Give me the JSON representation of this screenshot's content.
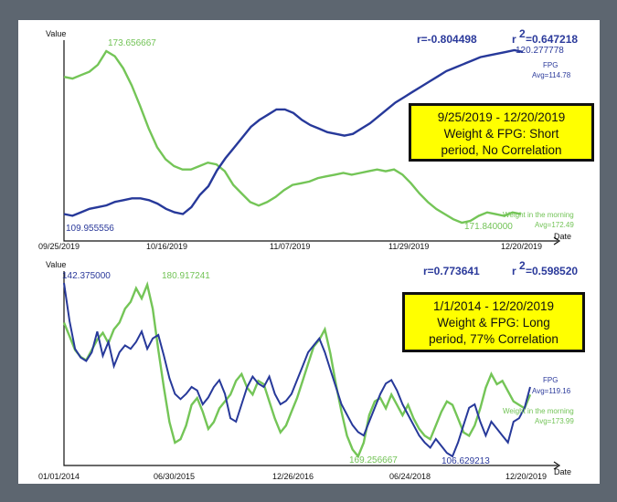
{
  "colors": {
    "fpg": "#27399a",
    "weight": "#74c557"
  },
  "chart_data": [
    {
      "type": "line",
      "xlabel": "Date",
      "ylabel": "Value",
      "x_ticks": [
        "09/25/2019",
        "10/16/2019",
        "11/07/2019",
        "11/29/2019",
        "12/20/2019"
      ],
      "stats": {
        "r": "r=-0.804498",
        "r2": "=0.647218",
        "r2_label": "r"
      },
      "note": {
        "line1": "9/25/2019 - 12/20/2019",
        "line2": "Weight & FPG:  Short",
        "line3": "period, No Correlation"
      },
      "series": [
        {
          "name": "FPG",
          "avg_label": "Avg=114.78",
          "max_label": "120.277778",
          "min_label": "109.955556",
          "values": [
            0.06,
            0.05,
            0.07,
            0.09,
            0.1,
            0.11,
            0.13,
            0.14,
            0.15,
            0.15,
            0.14,
            0.12,
            0.09,
            0.07,
            0.06,
            0.1,
            0.17,
            0.22,
            0.31,
            0.38,
            0.44,
            0.5,
            0.56,
            0.6,
            0.63,
            0.66,
            0.66,
            0.64,
            0.6,
            0.57,
            0.55,
            0.53,
            0.52,
            0.51,
            0.52,
            0.55,
            0.58,
            0.62,
            0.66,
            0.7,
            0.73,
            0.76,
            0.79,
            0.82,
            0.85,
            0.88,
            0.9,
            0.92,
            0.94,
            0.96,
            0.97,
            0.98,
            0.99,
            1.0,
            0.99
          ]
        },
        {
          "name": "Weight in the morning",
          "avg_label": "Avg=172.49",
          "max_label": "173.656667",
          "min_label": "171.840000",
          "values": [
            0.85,
            0.84,
            0.86,
            0.88,
            0.92,
            1.0,
            0.97,
            0.9,
            0.8,
            0.68,
            0.55,
            0.44,
            0.37,
            0.33,
            0.31,
            0.31,
            0.33,
            0.35,
            0.34,
            0.3,
            0.22,
            0.17,
            0.12,
            0.1,
            0.12,
            0.15,
            0.19,
            0.22,
            0.23,
            0.24,
            0.26,
            0.27,
            0.28,
            0.29,
            0.28,
            0.29,
            0.3,
            0.31,
            0.3,
            0.31,
            0.28,
            0.23,
            0.17,
            0.12,
            0.08,
            0.05,
            0.02,
            0.0,
            0.01,
            0.04,
            0.06,
            0.05,
            0.04,
            0.06,
            0.05
          ]
        }
      ]
    },
    {
      "type": "line",
      "xlabel": "Date",
      "ylabel": "Value",
      "x_ticks": [
        "01/01/2014",
        "06/30/2015",
        "12/26/2016",
        "06/24/2018",
        "12/20/2019"
      ],
      "stats": {
        "r": "r=0.773641",
        "r2": "=0.598520",
        "r2_label": "r"
      },
      "note": {
        "line1": "1/1/2014 - 12/20/2019",
        "line2": "Weight & FPG:  Long",
        "line3": "period, 77% Correlation"
      },
      "series": [
        {
          "name": "FPG",
          "avg_label": "Avg=119.16",
          "max_label": "142.375000",
          "min_label": "106.629213",
          "values": [
            1.0,
            0.78,
            0.62,
            0.57,
            0.55,
            0.6,
            0.72,
            0.58,
            0.66,
            0.52,
            0.6,
            0.64,
            0.62,
            0.66,
            0.72,
            0.62,
            0.68,
            0.7,
            0.58,
            0.45,
            0.36,
            0.33,
            0.36,
            0.4,
            0.38,
            0.3,
            0.34,
            0.4,
            0.44,
            0.36,
            0.22,
            0.2,
            0.3,
            0.4,
            0.46,
            0.42,
            0.4,
            0.46,
            0.36,
            0.3,
            0.32,
            0.36,
            0.44,
            0.52,
            0.6,
            0.64,
            0.68,
            0.6,
            0.5,
            0.4,
            0.3,
            0.24,
            0.18,
            0.14,
            0.12,
            0.2,
            0.28,
            0.36,
            0.42,
            0.44,
            0.38,
            0.3,
            0.24,
            0.18,
            0.12,
            0.08,
            0.05,
            0.1,
            0.06,
            0.02,
            0.0,
            0.08,
            0.18,
            0.28,
            0.3,
            0.2,
            0.12,
            0.2,
            0.16,
            0.12,
            0.08,
            0.2,
            0.22,
            0.28,
            0.4
          ]
        },
        {
          "name": "Weight in the morning",
          "avg_label": "Avg=173.99",
          "max_label": "180.917241",
          "min_label": "169.256667",
          "values": [
            0.78,
            0.7,
            0.62,
            0.58,
            0.56,
            0.62,
            0.68,
            0.72,
            0.66,
            0.74,
            0.78,
            0.86,
            0.9,
            0.98,
            0.92,
            1.0,
            0.86,
            0.62,
            0.4,
            0.2,
            0.08,
            0.1,
            0.18,
            0.3,
            0.34,
            0.26,
            0.16,
            0.2,
            0.28,
            0.32,
            0.36,
            0.44,
            0.48,
            0.4,
            0.36,
            0.44,
            0.42,
            0.32,
            0.22,
            0.14,
            0.18,
            0.26,
            0.34,
            0.44,
            0.54,
            0.64,
            0.68,
            0.74,
            0.6,
            0.42,
            0.26,
            0.12,
            0.04,
            0.0,
            0.08,
            0.24,
            0.32,
            0.34,
            0.28,
            0.36,
            0.3,
            0.24,
            0.3,
            0.22,
            0.16,
            0.12,
            0.1,
            0.18,
            0.26,
            0.32,
            0.3,
            0.22,
            0.14,
            0.12,
            0.18,
            0.28,
            0.4,
            0.48,
            0.42,
            0.44,
            0.38,
            0.32,
            0.3,
            0.28,
            0.36
          ]
        }
      ]
    }
  ]
}
